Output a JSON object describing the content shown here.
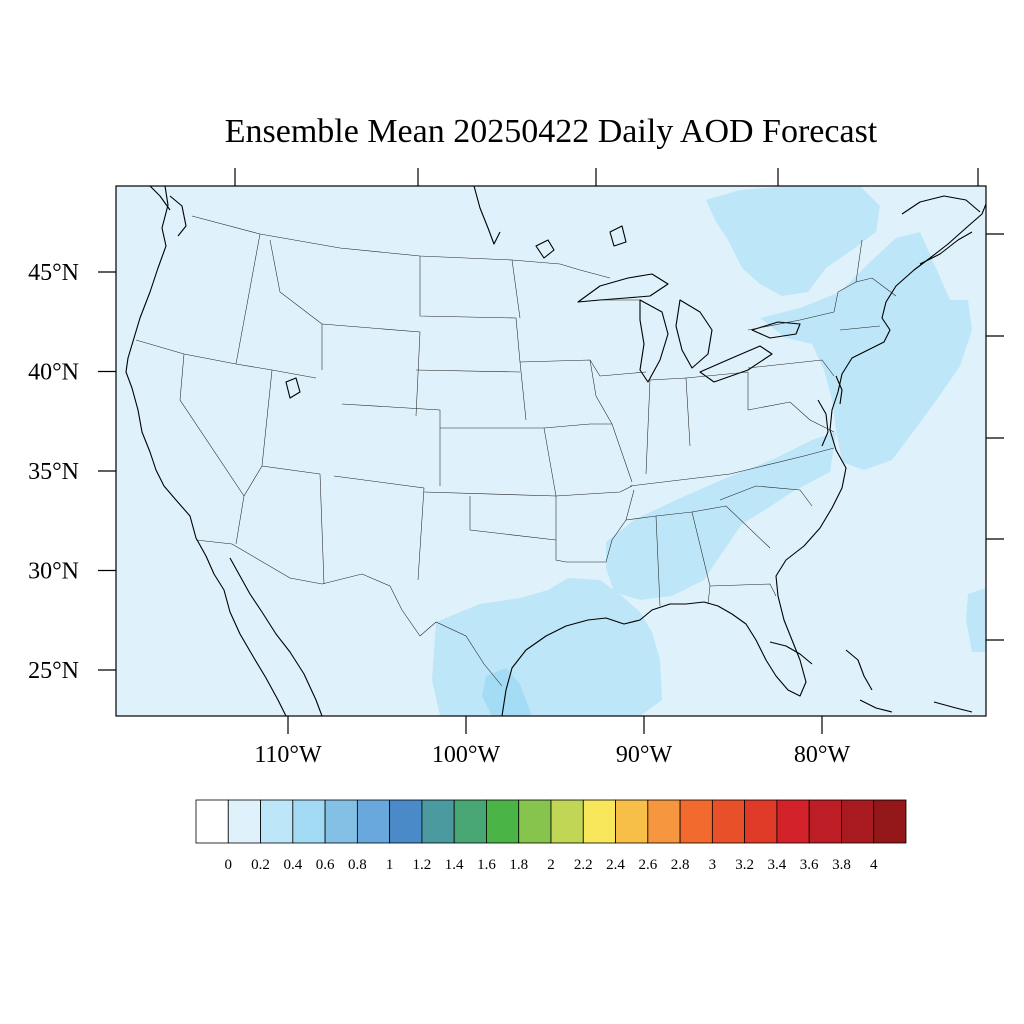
{
  "title": "Ensemble Mean 20250422 Daily AOD Forecast",
  "map": {
    "lon_range": [
      -120,
      -72
    ],
    "lat_range": [
      22.6,
      49.4
    ],
    "background_color": "#dff2fb",
    "lat_ticks": [
      {
        "value": 25,
        "label": "25°N"
      },
      {
        "value": 30,
        "label": "30°N"
      },
      {
        "value": 35,
        "label": "35°N"
      },
      {
        "value": 40,
        "label": "40°N"
      },
      {
        "value": 45,
        "label": "45°N"
      }
    ],
    "lon_ticks": [
      {
        "value": -110,
        "label": "110°W"
      },
      {
        "value": -100,
        "label": "100°W"
      },
      {
        "value": -90,
        "label": "90°W"
      },
      {
        "value": -80,
        "label": "80°W"
      }
    ],
    "aod_regions": [
      {
        "level": "0.2-0.4",
        "color": "#bde6f8",
        "area": "Texas Gulf coast and Mexico"
      },
      {
        "level": "0.4-0.6",
        "color": "#a5dcf5",
        "area": "South Texas / Rio Grande"
      },
      {
        "level": "0.2-0.4",
        "color": "#bde6f8",
        "area": "Southeast and Appalachians"
      },
      {
        "level": "0.2-0.4",
        "color": "#bde6f8",
        "area": "Northeast and western Atlantic"
      },
      {
        "level": "0.2-0.4",
        "color": "#bde6f8",
        "area": "Quebec / Ontario"
      }
    ]
  },
  "colorbar": {
    "labels": [
      "0",
      "0.2",
      "0.4",
      "0.6",
      "0.8",
      "1",
      "1.2",
      "1.4",
      "1.6",
      "1.8",
      "2",
      "2.2",
      "2.4",
      "2.6",
      "2.8",
      "3",
      "3.2",
      "3.4",
      "3.6",
      "3.8",
      "4"
    ],
    "colors": [
      "#ffffff",
      "#dff2fb",
      "#bde6f8",
      "#a2daf4",
      "#84c0e6",
      "#69a8dc",
      "#4a8ac8",
      "#4b9a9f",
      "#47a673",
      "#4bb446",
      "#86c44d",
      "#c2d655",
      "#f8e75b",
      "#f8bf48",
      "#f6963e",
      "#f26a2d",
      "#e85029",
      "#de3a27",
      "#d22129",
      "#bd1d25",
      "#a81a1f",
      "#931719"
    ]
  }
}
